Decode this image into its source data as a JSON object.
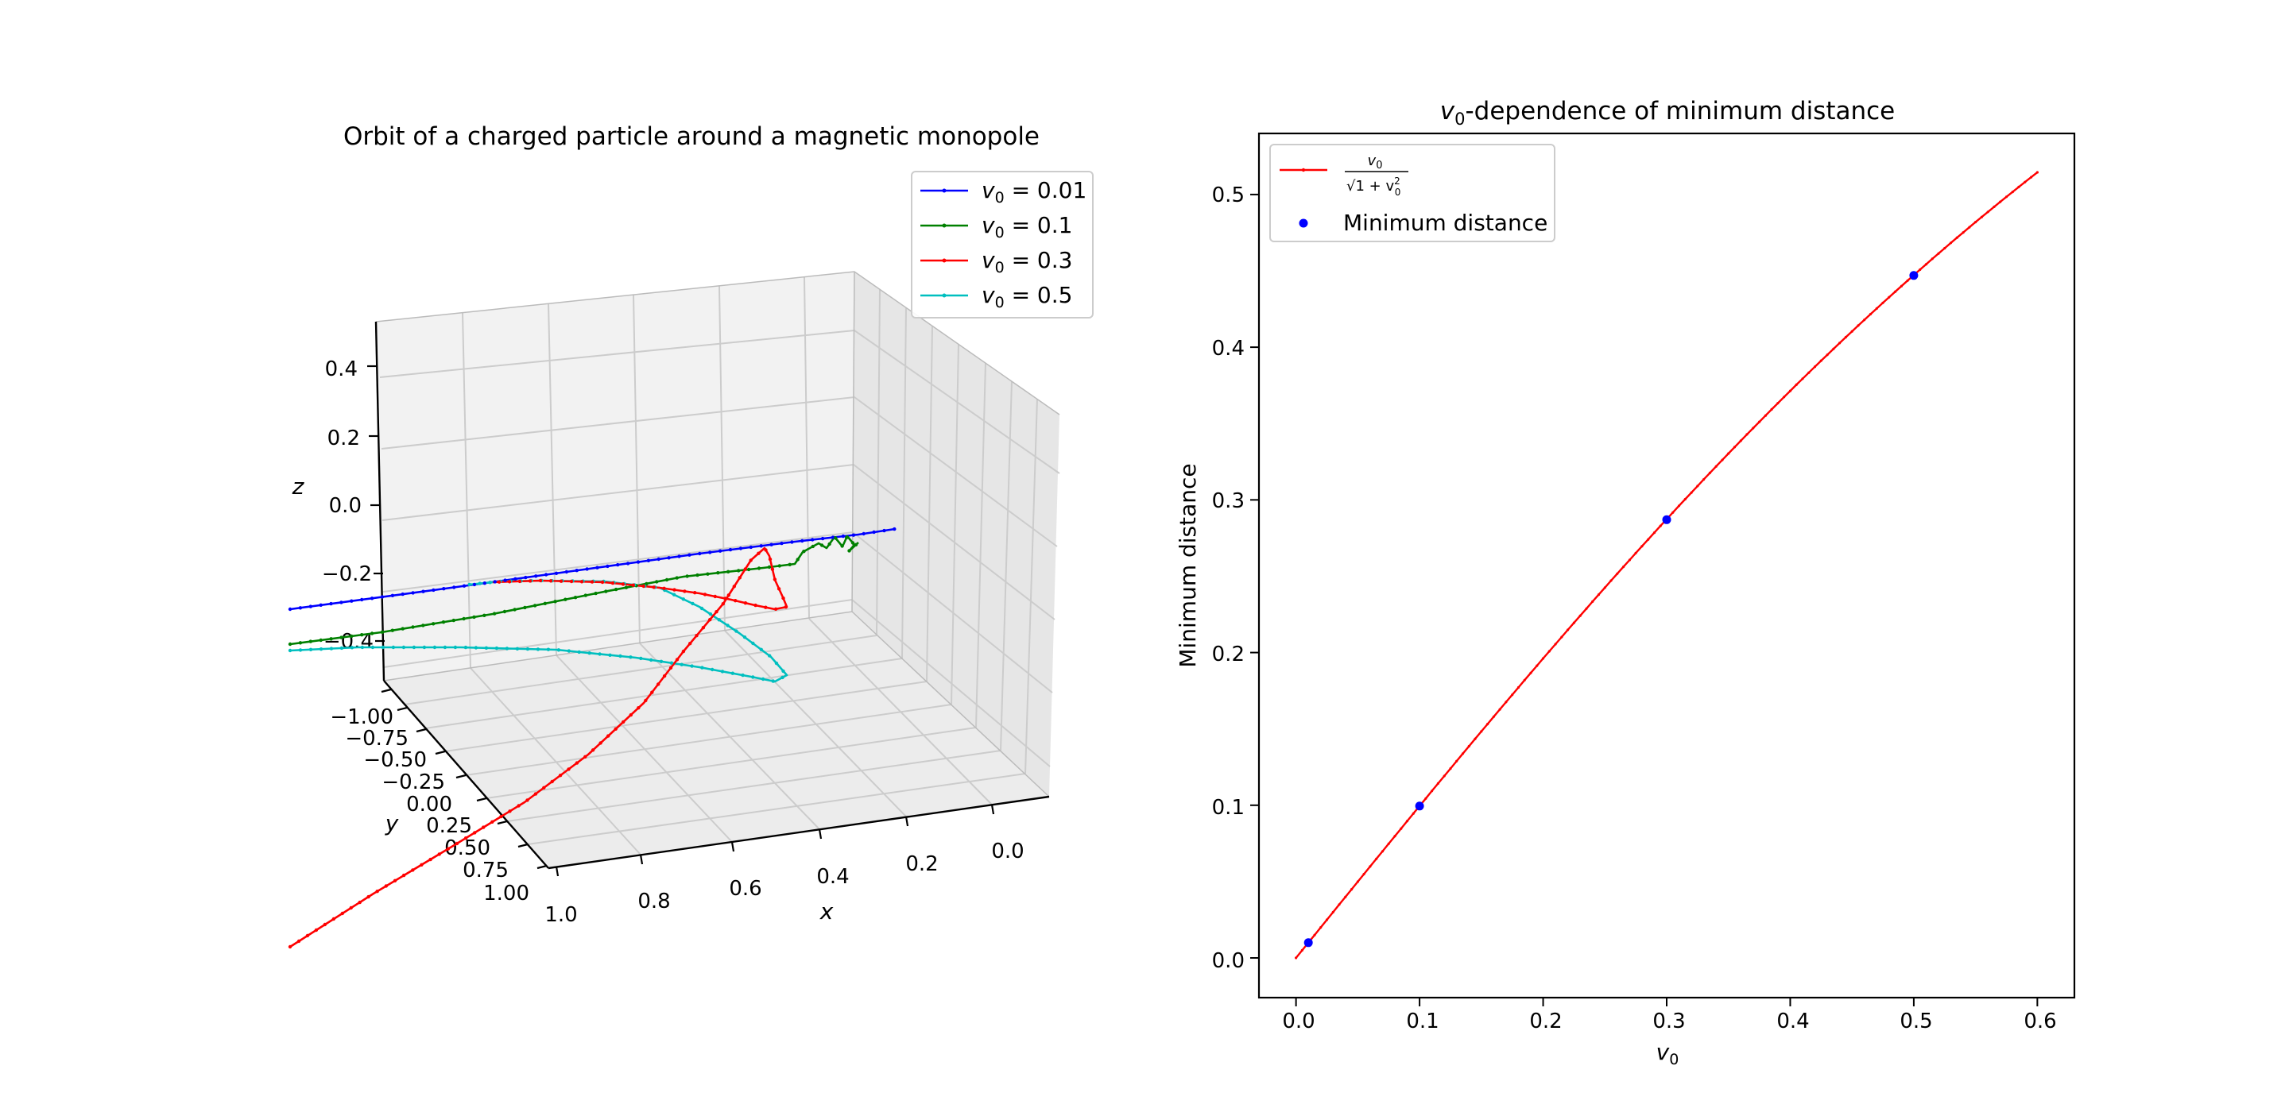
{
  "left_chart": {
    "title": "Orbit of a charged particle around a magnetic monopole",
    "xlabel": "x",
    "ylabel": "y",
    "zlabel": "z",
    "x_ticks": [
      "1.0",
      "0.8",
      "0.6",
      "0.4",
      "0.2",
      "0.0"
    ],
    "y_ticks": [
      "−1.00",
      "−0.75",
      "−0.50",
      "−0.25",
      "0.00",
      "0.25",
      "0.50",
      "0.75",
      "1.00"
    ],
    "z_ticks": [
      "0.4",
      "0.2",
      "0.0",
      "−0.2",
      "−0.4"
    ],
    "legend": [
      {
        "var": "v",
        "sub": "0",
        "rest": " = 0.01",
        "color": "#0000ff"
      },
      {
        "var": "v",
        "sub": "0",
        "rest": " = 0.1",
        "color": "#008000"
      },
      {
        "var": "v",
        "sub": "0",
        "rest": " = 0.3",
        "color": "#ff0000"
      },
      {
        "var": "v",
        "sub": "0",
        "rest": " = 0.5",
        "color": "#00bfbf"
      }
    ]
  },
  "right_chart": {
    "title_var": "v",
    "title_sub": "0",
    "title_rest": "-dependence of minimum distance",
    "xlabel_var": "v",
    "xlabel_sub": "0",
    "ylabel": "Minimum distance",
    "x_ticks": [
      "0.0",
      "0.1",
      "0.2",
      "0.3",
      "0.4",
      "0.5",
      "0.6"
    ],
    "y_ticks": [
      "0.0",
      "0.1",
      "0.2",
      "0.3",
      "0.4",
      "0.5"
    ],
    "legend_curve_label": {
      "num_var": "v",
      "num_sub": "0",
      "den": "√1 + v",
      "den_sup": "2",
      "den_sub": "0"
    },
    "legend_points_label": "Minimum distance",
    "curve_color": "#ff0000",
    "points_color": "#0000ff"
  },
  "chart_data": [
    {
      "type": "line",
      "title": "Orbit of a charged particle around a magnetic monopole",
      "xlabel": "x",
      "ylabel": "y",
      "zlabel": "z",
      "projection": "3d",
      "xlim": [
        0.0,
        1.0
      ],
      "ylim": [
        -1.0,
        1.0
      ],
      "zlim": [
        -0.5,
        0.5
      ],
      "series": [
        {
          "name": "v0 = 0.01",
          "color": "#0000ff"
        },
        {
          "name": "v0 = 0.1",
          "color": "#008000"
        },
        {
          "name": "v0 = 0.3",
          "color": "#ff0000"
        },
        {
          "name": "v0 = 0.5",
          "color": "#00bfbf"
        }
      ],
      "legend_position": "upper right"
    },
    {
      "type": "line",
      "title": "v0-dependence of minimum distance",
      "xlabel": "v0",
      "ylabel": "Minimum distance",
      "xlim": [
        -0.03,
        0.63
      ],
      "ylim": [
        -0.026,
        0.54
      ],
      "series": [
        {
          "name": "v0/sqrt(1+v0^2)",
          "kind": "line",
          "color": "#ff0000",
          "x": [
            0.0,
            0.6
          ],
          "function": "v0/sqrt(1+v0^2)"
        },
        {
          "name": "Minimum distance",
          "kind": "scatter",
          "color": "#0000ff",
          "x": [
            0.01,
            0.1,
            0.3,
            0.5
          ],
          "y": [
            0.01,
            0.0995,
            0.287,
            0.447
          ]
        }
      ],
      "legend_position": "upper left"
    }
  ]
}
